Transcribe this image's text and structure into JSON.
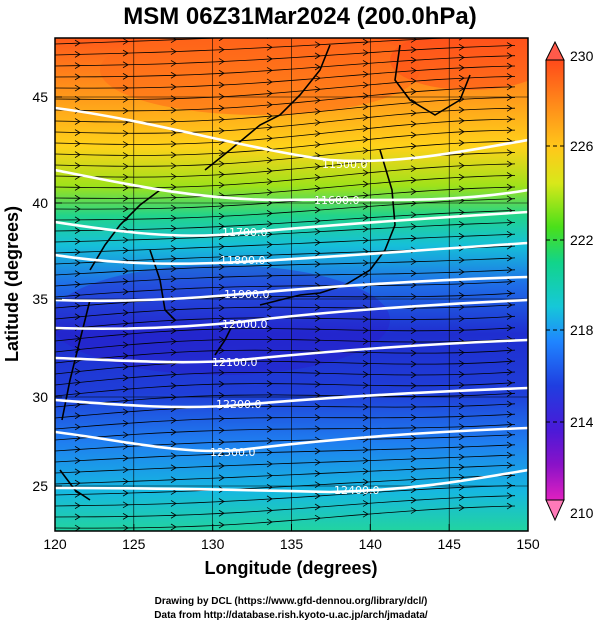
{
  "title": "MSM 06Z31Mar2024 (200.0hPa)",
  "x_axis": {
    "label": "Longitude (degrees)",
    "range": [
      120,
      150
    ],
    "ticks": [
      "120",
      "125",
      "130",
      "135",
      "140",
      "145",
      "150"
    ]
  },
  "y_axis": {
    "label": "Latitude  (degrees)",
    "range": [
      22.5,
      47.8
    ],
    "ticks": [
      "25",
      "30",
      "35",
      "40",
      "45"
    ]
  },
  "colorbar": {
    "range": [
      210,
      230
    ],
    "ticks": [
      "230",
      "226",
      "222",
      "218",
      "214",
      "210"
    ],
    "colors": [
      "#ff4aa0",
      "#c015c8",
      "#4a1ad8",
      "#1f3ee0",
      "#1f85ff",
      "#16c8d8",
      "#12d48a",
      "#22d422",
      "#b8e81a",
      "#ffd21a",
      "#ff9a1a",
      "#ff4a1a"
    ]
  },
  "contours": [
    {
      "label": "11500.0"
    },
    {
      "label": "11600.0"
    },
    {
      "label": "11700.0"
    },
    {
      "label": "11800.0"
    },
    {
      "label": "11900.0"
    },
    {
      "label": "12000.0"
    },
    {
      "label": "12100.0"
    },
    {
      "label": "12200.0"
    },
    {
      "label": "12300.0"
    },
    {
      "label": "12400.0"
    }
  ],
  "credits": [
    "Drawing by DCL (https://www.gfd-dennou.org/library/dcl/)",
    "Data from http://database.rish.kyoto-u.ac.jp/arch/jmadata/"
  ]
}
